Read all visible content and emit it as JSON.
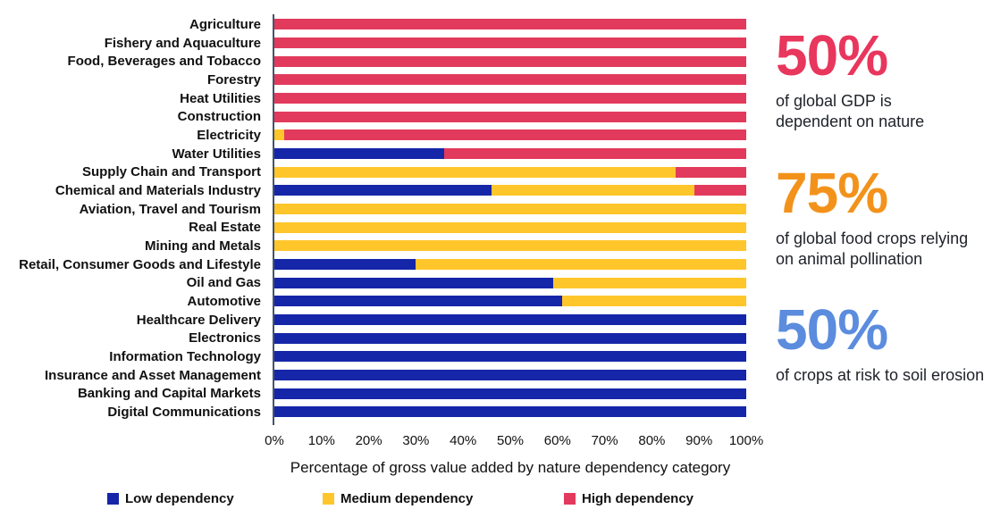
{
  "chart_data": {
    "type": "bar",
    "orientation": "horizontal",
    "stacked": true,
    "categories": [
      "Agriculture",
      "Fishery and Aquaculture",
      "Food, Beverages and Tobacco",
      "Forestry",
      "Heat Utilities",
      "Construction",
      "Electricity",
      "Water Utilities",
      "Supply Chain and Transport",
      "Chemical and Materials Industry",
      "Aviation, Travel and Tourism",
      "Real Estate",
      "Mining and Metals",
      "Retail, Consumer Goods and Lifestyle",
      "Oil and Gas",
      "Automotive",
      "Healthcare Delivery",
      "Electronics",
      "Information Technology",
      "Insurance and Asset Management",
      "Banking and Capital Markets",
      "Digital Communications"
    ],
    "series": [
      {
        "name": "Low dependency",
        "color": "#1526A8",
        "values": [
          0,
          0,
          0,
          0,
          0,
          0,
          0,
          36,
          0,
          46,
          0,
          0,
          0,
          30,
          59,
          61,
          100,
          100,
          100,
          100,
          100,
          100
        ]
      },
      {
        "name": "Medium dependency",
        "color": "#FFC62B",
        "values": [
          0,
          0,
          0,
          0,
          0,
          0,
          2,
          0,
          85,
          43,
          100,
          100,
          100,
          70,
          41,
          39,
          0,
          0,
          0,
          0,
          0,
          0
        ]
      },
      {
        "name": "High dependency",
        "color": "#E23A5C",
        "values": [
          100,
          100,
          100,
          100,
          100,
          100,
          98,
          64,
          15,
          11,
          0,
          0,
          0,
          0,
          0,
          0,
          0,
          0,
          0,
          0,
          0,
          0
        ]
      }
    ],
    "xlabel": "Percentage of gross value added by nature dependency category",
    "x_ticks": [
      "0%",
      "10%",
      "20%",
      "30%",
      "40%",
      "50%",
      "60%",
      "70%",
      "80%",
      "90%",
      "100%"
    ],
    "xlim": [
      0,
      100
    ],
    "grid": false,
    "legend_position": "bottom",
    "axis_color": "#44546A"
  },
  "legend": [
    {
      "label": "Low dependency",
      "color": "#1526A8"
    },
    {
      "label": "Medium dependency",
      "color": "#FFC62B"
    },
    {
      "label": "High dependency",
      "color": "#E23A5C"
    }
  ],
  "annotations": [
    {
      "value": "50%",
      "color": "#E8365D",
      "text": "of global GDP is\ndependent on nature"
    },
    {
      "value": "75%",
      "color": "#F3921B",
      "text": "of global food crops relying\non animal pollination"
    },
    {
      "value": "50%",
      "color": "#5B8CDE",
      "text": "of crops at risk to soil erosion"
    }
  ]
}
